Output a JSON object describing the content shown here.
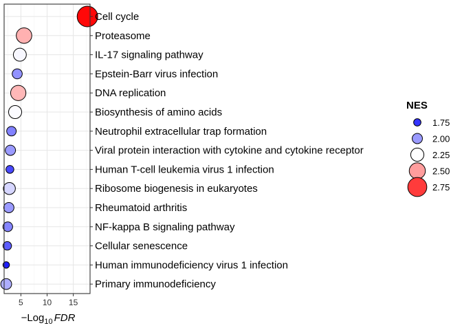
{
  "chart_data": {
    "type": "scatter",
    "title": "",
    "xlabel_prefix": "−Log",
    "xlabel_sub": "10",
    "xlabel_var": "FDR",
    "ylabel": "",
    "xlim": [
      1.8,
      18.2
    ],
    "xticks": [
      5,
      10,
      15
    ],
    "grid": true,
    "legend": {
      "title": "NES",
      "position": "right",
      "items": [
        {
          "label": "1.75",
          "value": 1.75
        },
        {
          "label": "2.00",
          "value": 2.0
        },
        {
          "label": "2.25",
          "value": 2.25
        },
        {
          "label": "2.50",
          "value": 2.5
        },
        {
          "label": "2.75",
          "value": 2.75
        }
      ]
    },
    "color_scale": {
      "low": "#2020ff",
      "mid": "#ffffff",
      "high": "#ff0000",
      "min": 1.7,
      "midpoint": 2.25,
      "max": 2.9
    },
    "points": [
      {
        "term": "Cell cycle",
        "x": 17.7,
        "nes": 2.88
      },
      {
        "term": "Proteasome",
        "x": 5.6,
        "nes": 2.45
      },
      {
        "term": "IL-17 signaling pathway",
        "x": 4.8,
        "nes": 2.23
      },
      {
        "term": "Epstein-Barr virus infection",
        "x": 4.3,
        "nes": 1.98
      },
      {
        "term": "DNA replication",
        "x": 4.5,
        "nes": 2.43
      },
      {
        "term": "Biosynthesis of amino acids",
        "x": 3.9,
        "nes": 2.24
      },
      {
        "term": "Neutrophil extracellular trap formation",
        "x": 3.2,
        "nes": 1.94
      },
      {
        "term": "Viral protein interaction with cytokine and cytokine receptor",
        "x": 3.0,
        "nes": 2.0
      },
      {
        "term": "Human T-cell leukemia virus 1 infection",
        "x": 2.9,
        "nes": 1.8
      },
      {
        "term": "Ribosome biogenesis in eukaryotes",
        "x": 2.8,
        "nes": 2.15
      },
      {
        "term": "Rheumatoid arthritis",
        "x": 2.7,
        "nes": 2.0
      },
      {
        "term": "NF-kappa B signaling pathway",
        "x": 2.5,
        "nes": 1.95
      },
      {
        "term": "Cellular senescence",
        "x": 2.4,
        "nes": 1.85
      },
      {
        "term": "Human immunodeficiency virus 1 infection",
        "x": 2.2,
        "nes": 1.68
      },
      {
        "term": "Primary immunodeficiency",
        "x": 2.2,
        "nes": 2.05
      }
    ]
  }
}
